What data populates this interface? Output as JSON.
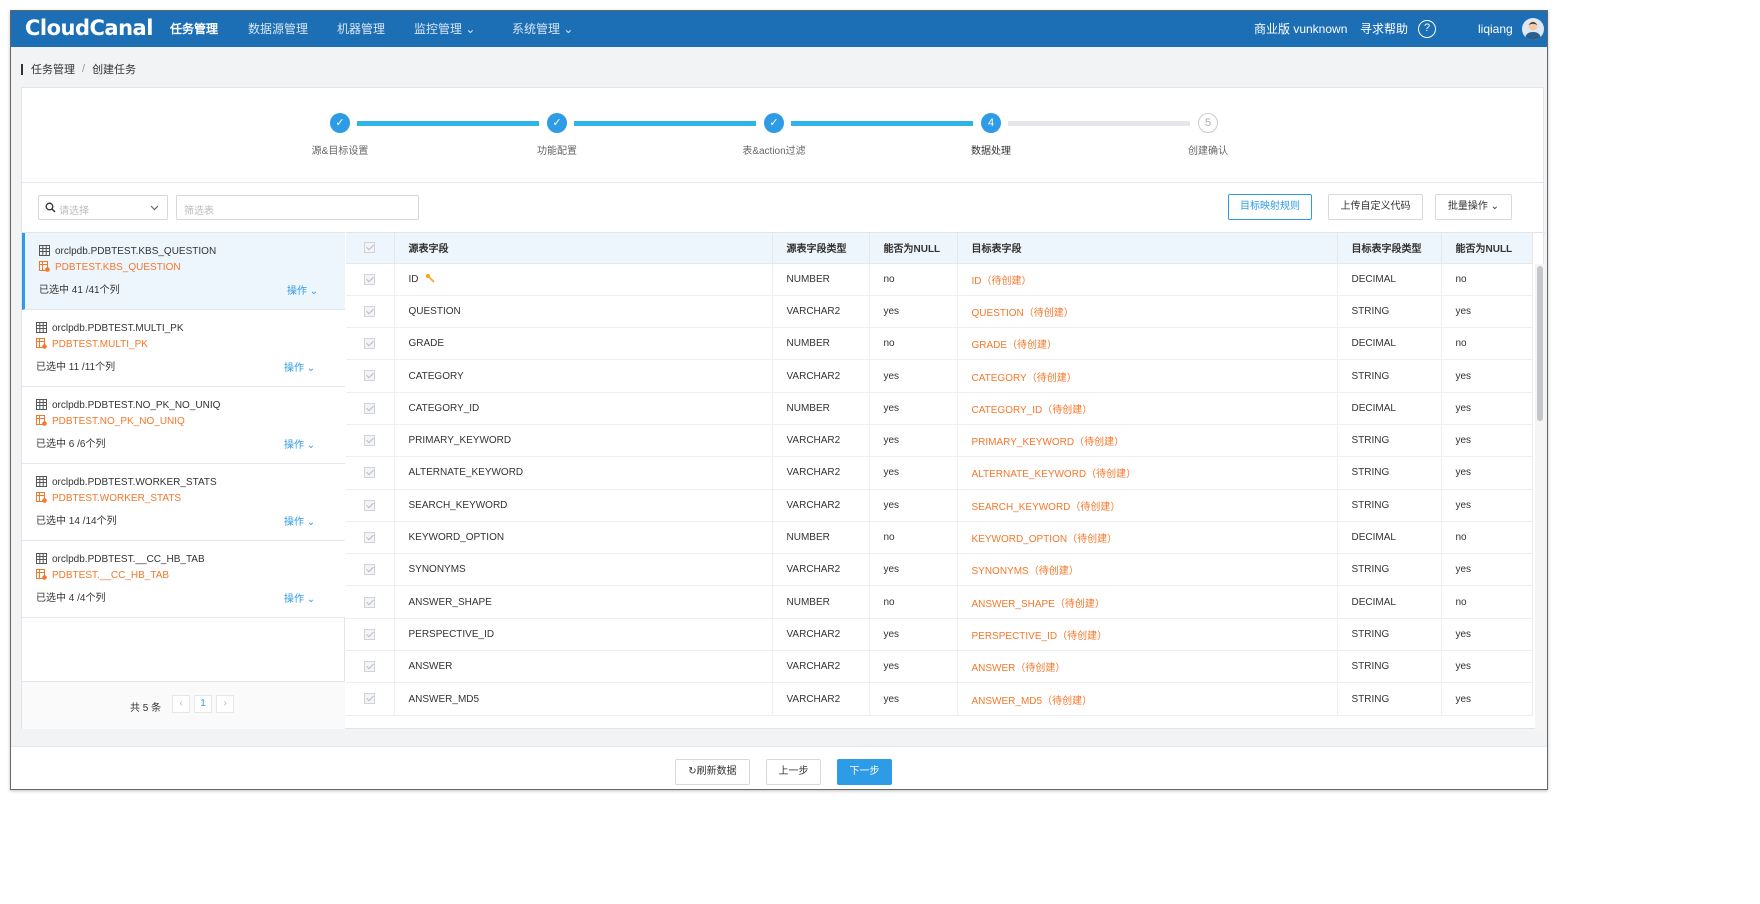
{
  "app": {
    "logo": "CloudCanal",
    "nav": [
      "任务管理",
      "数据源管理",
      "机器管理",
      "监控管理 ⌄",
      "系统管理 ⌄"
    ],
    "edition": "商业版 vunknown",
    "help": "寻求帮助",
    "help_icon": "?",
    "user": "liqiang"
  },
  "breadcrumb": {
    "root": "任务管理",
    "sep": "/",
    "current": "创建任务"
  },
  "steps": [
    {
      "label": "源&目标设置",
      "status": "done",
      "mark": "✓"
    },
    {
      "label": "功能配置",
      "status": "done",
      "mark": "✓"
    },
    {
      "label": "表&action过滤",
      "status": "done",
      "mark": "✓"
    },
    {
      "label": "数据处理",
      "status": "current",
      "mark": "4"
    },
    {
      "label": "创建确认",
      "status": "pending",
      "mark": "5"
    }
  ],
  "filters": {
    "select_placeholder": "请选择",
    "table_placeholder": "筛选表",
    "btn_mapping": "目标映射规则",
    "btn_upload": "上传自定义代码",
    "btn_batch": "批量操作 ⌄"
  },
  "tables": [
    {
      "src": "orclpdb.PDBTEST.KBS_QUESTION",
      "tgt": "PDBTEST.KBS_QUESTION",
      "count": "已选中 41 /41个列",
      "op": "操作 ⌄"
    },
    {
      "src": "orclpdb.PDBTEST.MULTI_PK",
      "tgt": "PDBTEST.MULTI_PK",
      "count": "已选中 11 /11个列",
      "op": "操作 ⌄"
    },
    {
      "src": "orclpdb.PDBTEST.NO_PK_NO_UNIQ",
      "tgt": "PDBTEST.NO_PK_NO_UNIQ",
      "count": "已选中 6 /6个列",
      "op": "操作 ⌄"
    },
    {
      "src": "orclpdb.PDBTEST.WORKER_STATS",
      "tgt": "PDBTEST.WORKER_STATS",
      "count": "已选中 14 /14个列",
      "op": "操作 ⌄"
    },
    {
      "src": "orclpdb.PDBTEST.__CC_HB_TAB",
      "tgt": "PDBTEST.__CC_HB_TAB",
      "count": "已选中 4 /4个列",
      "op": "操作 ⌄"
    }
  ],
  "pager": {
    "total": "共 5 条",
    "prev": "‹",
    "page": "1",
    "next": "›"
  },
  "columns_header": [
    "源表字段",
    "源表字段类型",
    "能否为NULL",
    "目标表字段",
    "目标表字段类型",
    "能否为NULL"
  ],
  "rows": [
    [
      "ID",
      "NUMBER",
      "no",
      "ID（待创建）",
      "DECIMAL",
      "no"
    ],
    [
      "QUESTION",
      "VARCHAR2",
      "yes",
      "QUESTION（待创建）",
      "STRING",
      "yes"
    ],
    [
      "GRADE",
      "NUMBER",
      "no",
      "GRADE（待创建）",
      "DECIMAL",
      "no"
    ],
    [
      "CATEGORY",
      "VARCHAR2",
      "yes",
      "CATEGORY（待创建）",
      "STRING",
      "yes"
    ],
    [
      "CATEGORY_ID",
      "NUMBER",
      "yes",
      "CATEGORY_ID（待创建）",
      "DECIMAL",
      "yes"
    ],
    [
      "PRIMARY_KEYWORD",
      "VARCHAR2",
      "yes",
      "PRIMARY_KEYWORD（待创建）",
      "STRING",
      "yes"
    ],
    [
      "ALTERNATE_KEYWORD",
      "VARCHAR2",
      "yes",
      "ALTERNATE_KEYWORD（待创建）",
      "STRING",
      "yes"
    ],
    [
      "SEARCH_KEYWORD",
      "VARCHAR2",
      "yes",
      "SEARCH_KEYWORD（待创建）",
      "STRING",
      "yes"
    ],
    [
      "KEYWORD_OPTION",
      "NUMBER",
      "no",
      "KEYWORD_OPTION（待创建）",
      "DECIMAL",
      "no"
    ],
    [
      "SYNONYMS",
      "VARCHAR2",
      "yes",
      "SYNONYMS（待创建）",
      "STRING",
      "yes"
    ],
    [
      "ANSWER_SHAPE",
      "NUMBER",
      "no",
      "ANSWER_SHAPE（待创建）",
      "DECIMAL",
      "no"
    ],
    [
      "PERSPECTIVE_ID",
      "VARCHAR2",
      "yes",
      "PERSPECTIVE_ID（待创建）",
      "STRING",
      "yes"
    ],
    [
      "ANSWER",
      "VARCHAR2",
      "yes",
      "ANSWER（待创建）",
      "STRING",
      "yes"
    ],
    [
      "ANSWER_MD5",
      "VARCHAR2",
      "yes",
      "ANSWER_MD5（待创建）",
      "STRING",
      "yes"
    ]
  ],
  "footer": {
    "refresh": "↻刷新数据",
    "prev": "上一步",
    "next": "下一步"
  },
  "colors": {
    "brand": "#1c6fb5",
    "accent": "#2e9be6",
    "target": "#f5772a"
  },
  "icons": {
    "table": "table-icon",
    "target_table": "target-table-icon",
    "primary_key": "key-icon",
    "search": "search-icon"
  }
}
